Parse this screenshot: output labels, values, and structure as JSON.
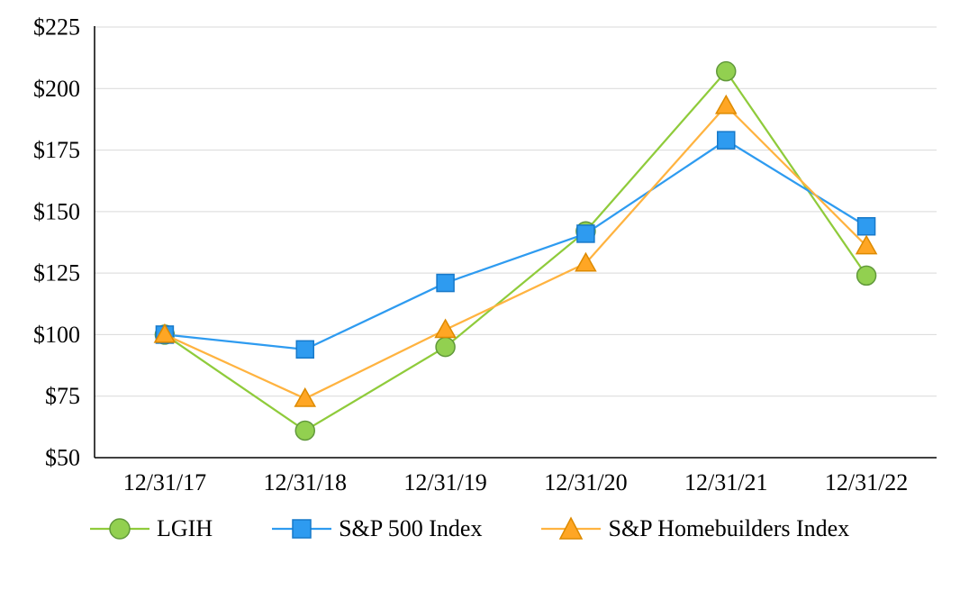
{
  "chart_data": {
    "type": "line",
    "title": "",
    "xlabel": "",
    "ylabel": "",
    "x_categories": [
      "12/31/17",
      "12/31/18",
      "12/31/19",
      "12/31/20",
      "12/31/21",
      "12/31/22"
    ],
    "y_ticks": [
      "$225",
      "$200",
      "$175",
      "$150",
      "$125",
      "$100",
      "$75",
      "$50"
    ],
    "ylim": [
      50,
      225
    ],
    "y_tick_step": 25,
    "grid": true,
    "grid_color": "#D9D9D9",
    "axis_color": "#000000",
    "legend_position": "bottom",
    "series": [
      {
        "name": "LGIH",
        "marker": "circle",
        "color": "#92D050",
        "stroke": "#61993B",
        "line_color": "#8FCB3B",
        "values": [
          100,
          61,
          95,
          142,
          207,
          124
        ]
      },
      {
        "name": "S&P 500 Index",
        "marker": "square",
        "color": "#2E9BF0",
        "stroke": "#1779C9",
        "line_color": "#2E9BF0",
        "values": [
          100,
          94,
          121,
          141,
          179,
          144
        ]
      },
      {
        "name": "S&P Homebuilders Index",
        "marker": "triangle",
        "color": "#FFA624",
        "stroke": "#DD8A00",
        "line_color": "#FFB340",
        "values": [
          100,
          74,
          102,
          129,
          193,
          136
        ]
      }
    ]
  }
}
